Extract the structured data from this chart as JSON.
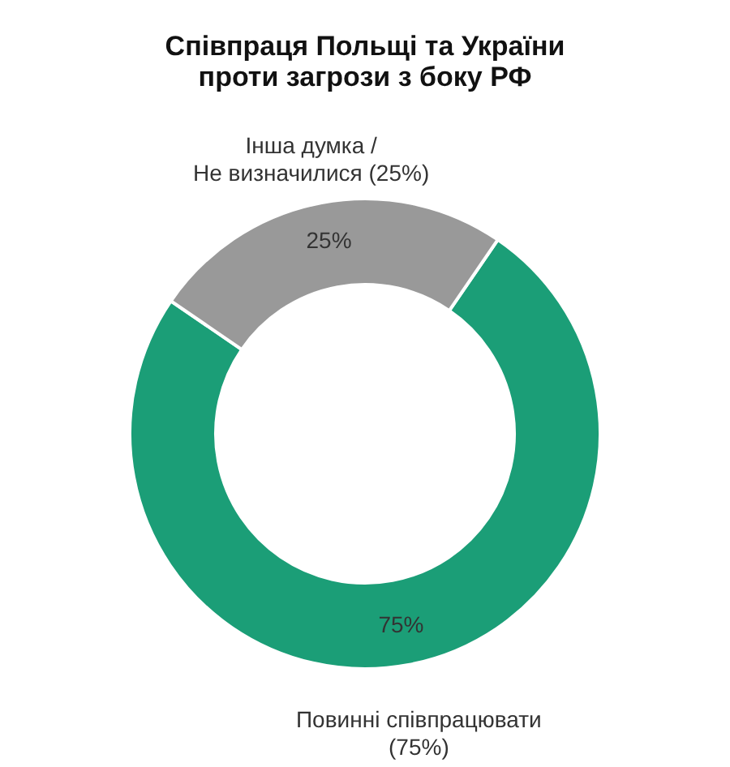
{
  "chart_data": {
    "type": "donut",
    "title": "Співпраця Польщі та України проти загрози з боку РФ",
    "categories": [
      "Повинні співпрацювати (75%)",
      "Інша думка / Не визначилися (25%)"
    ],
    "values": [
      75,
      25
    ],
    "colors": [
      "#1b9e77",
      "#999999"
    ],
    "value_labels": [
      "75%",
      "25%"
    ],
    "legend": false
  }
}
